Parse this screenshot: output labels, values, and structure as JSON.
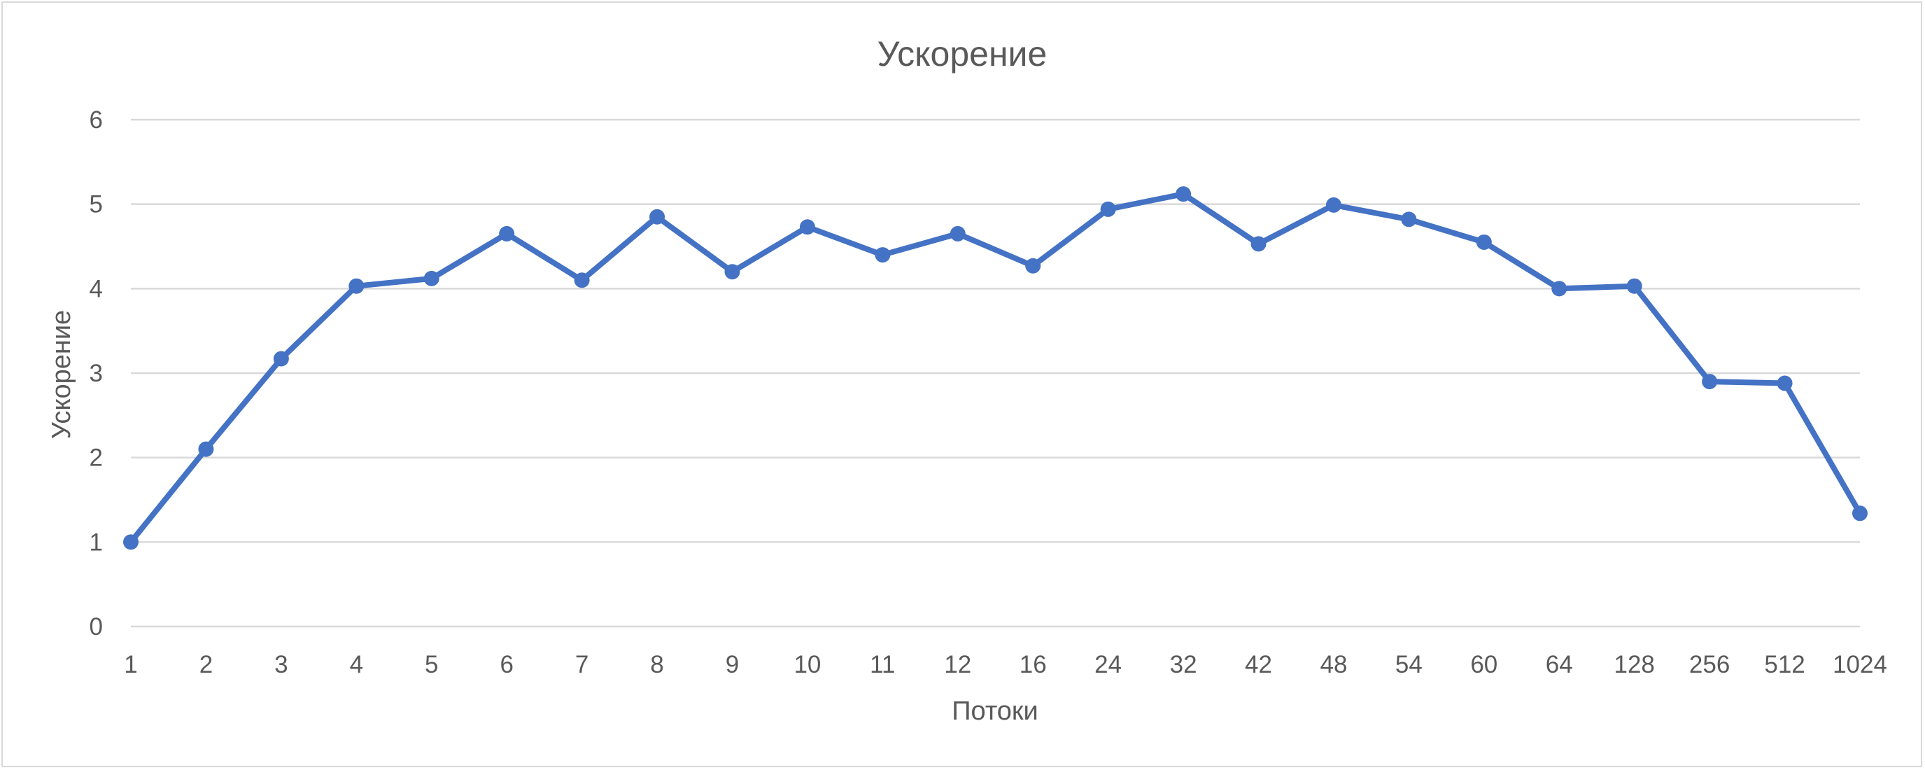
{
  "chart_data": {
    "type": "line",
    "title": "Ускорение",
    "xlabel": "Потоки",
    "ylabel": "Ускорение",
    "ylim": [
      0,
      6
    ],
    "yticks": [
      "0",
      "1",
      "2",
      "3",
      "4",
      "5",
      "6"
    ],
    "grid": true,
    "legend": "none",
    "categories": [
      "1",
      "2",
      "3",
      "4",
      "5",
      "6",
      "7",
      "8",
      "9",
      "10",
      "11",
      "12",
      "16",
      "24",
      "32",
      "42",
      "48",
      "54",
      "60",
      "64",
      "128",
      "256",
      "512",
      "1024"
    ],
    "series": [
      {
        "color": "#4472c4",
        "values": [
          1.0,
          2.1,
          3.17,
          4.03,
          4.12,
          4.65,
          4.1,
          4.85,
          4.2,
          4.73,
          4.4,
          4.65,
          4.27,
          4.94,
          5.12,
          4.53,
          4.99,
          4.82,
          4.55,
          4.0,
          4.03,
          2.9,
          2.88,
          1.34
        ]
      }
    ]
  }
}
